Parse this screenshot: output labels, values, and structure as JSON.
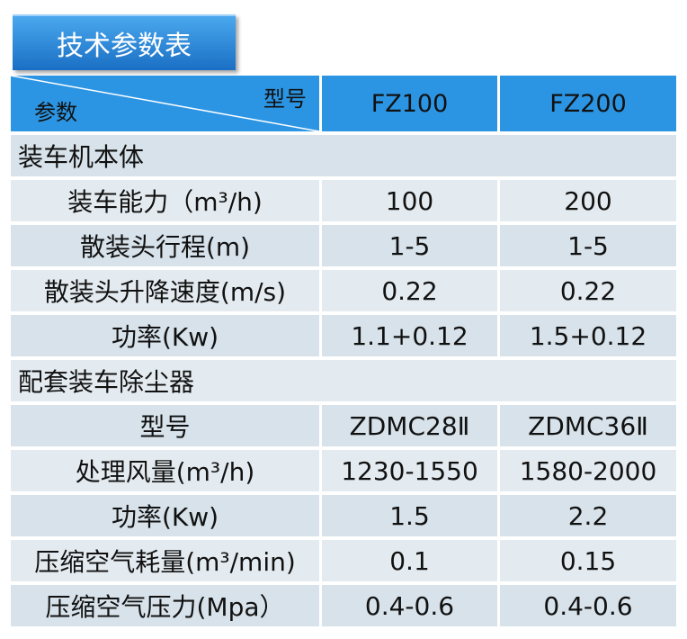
{
  "header": {
    "title": "技术参数表"
  },
  "table": {
    "corner": {
      "top": "型号",
      "bottom": "参数"
    },
    "columns": [
      "FZ100",
      "FZ200"
    ],
    "rows": [
      {
        "section": "装车机本体"
      },
      [
        "装车能力（m³/h)",
        "100",
        "200"
      ],
      [
        "散装头行程(m)",
        "1-5",
        "1-5"
      ],
      [
        "散装头升降速度(m/s)",
        "0.22",
        "0.22"
      ],
      [
        "功率(Kw)",
        "1.1+0.12",
        "1.5+0.12"
      ],
      {
        "section": "配套装车除尘器"
      },
      [
        "型号",
        "ZDMC28Ⅱ",
        "ZDMC36Ⅱ"
      ],
      [
        "处理风量(m³/h)",
        "1230-1550",
        "1580-2000"
      ],
      [
        "功率(Kw)",
        "1.5",
        "2.2"
      ],
      [
        "压缩空气耗量(m³/min)",
        "0.1",
        "0.15"
      ],
      [
        "压缩空气压力(Mpa）",
        "0.4-0.6",
        "0.4-0.6"
      ]
    ]
  }
}
